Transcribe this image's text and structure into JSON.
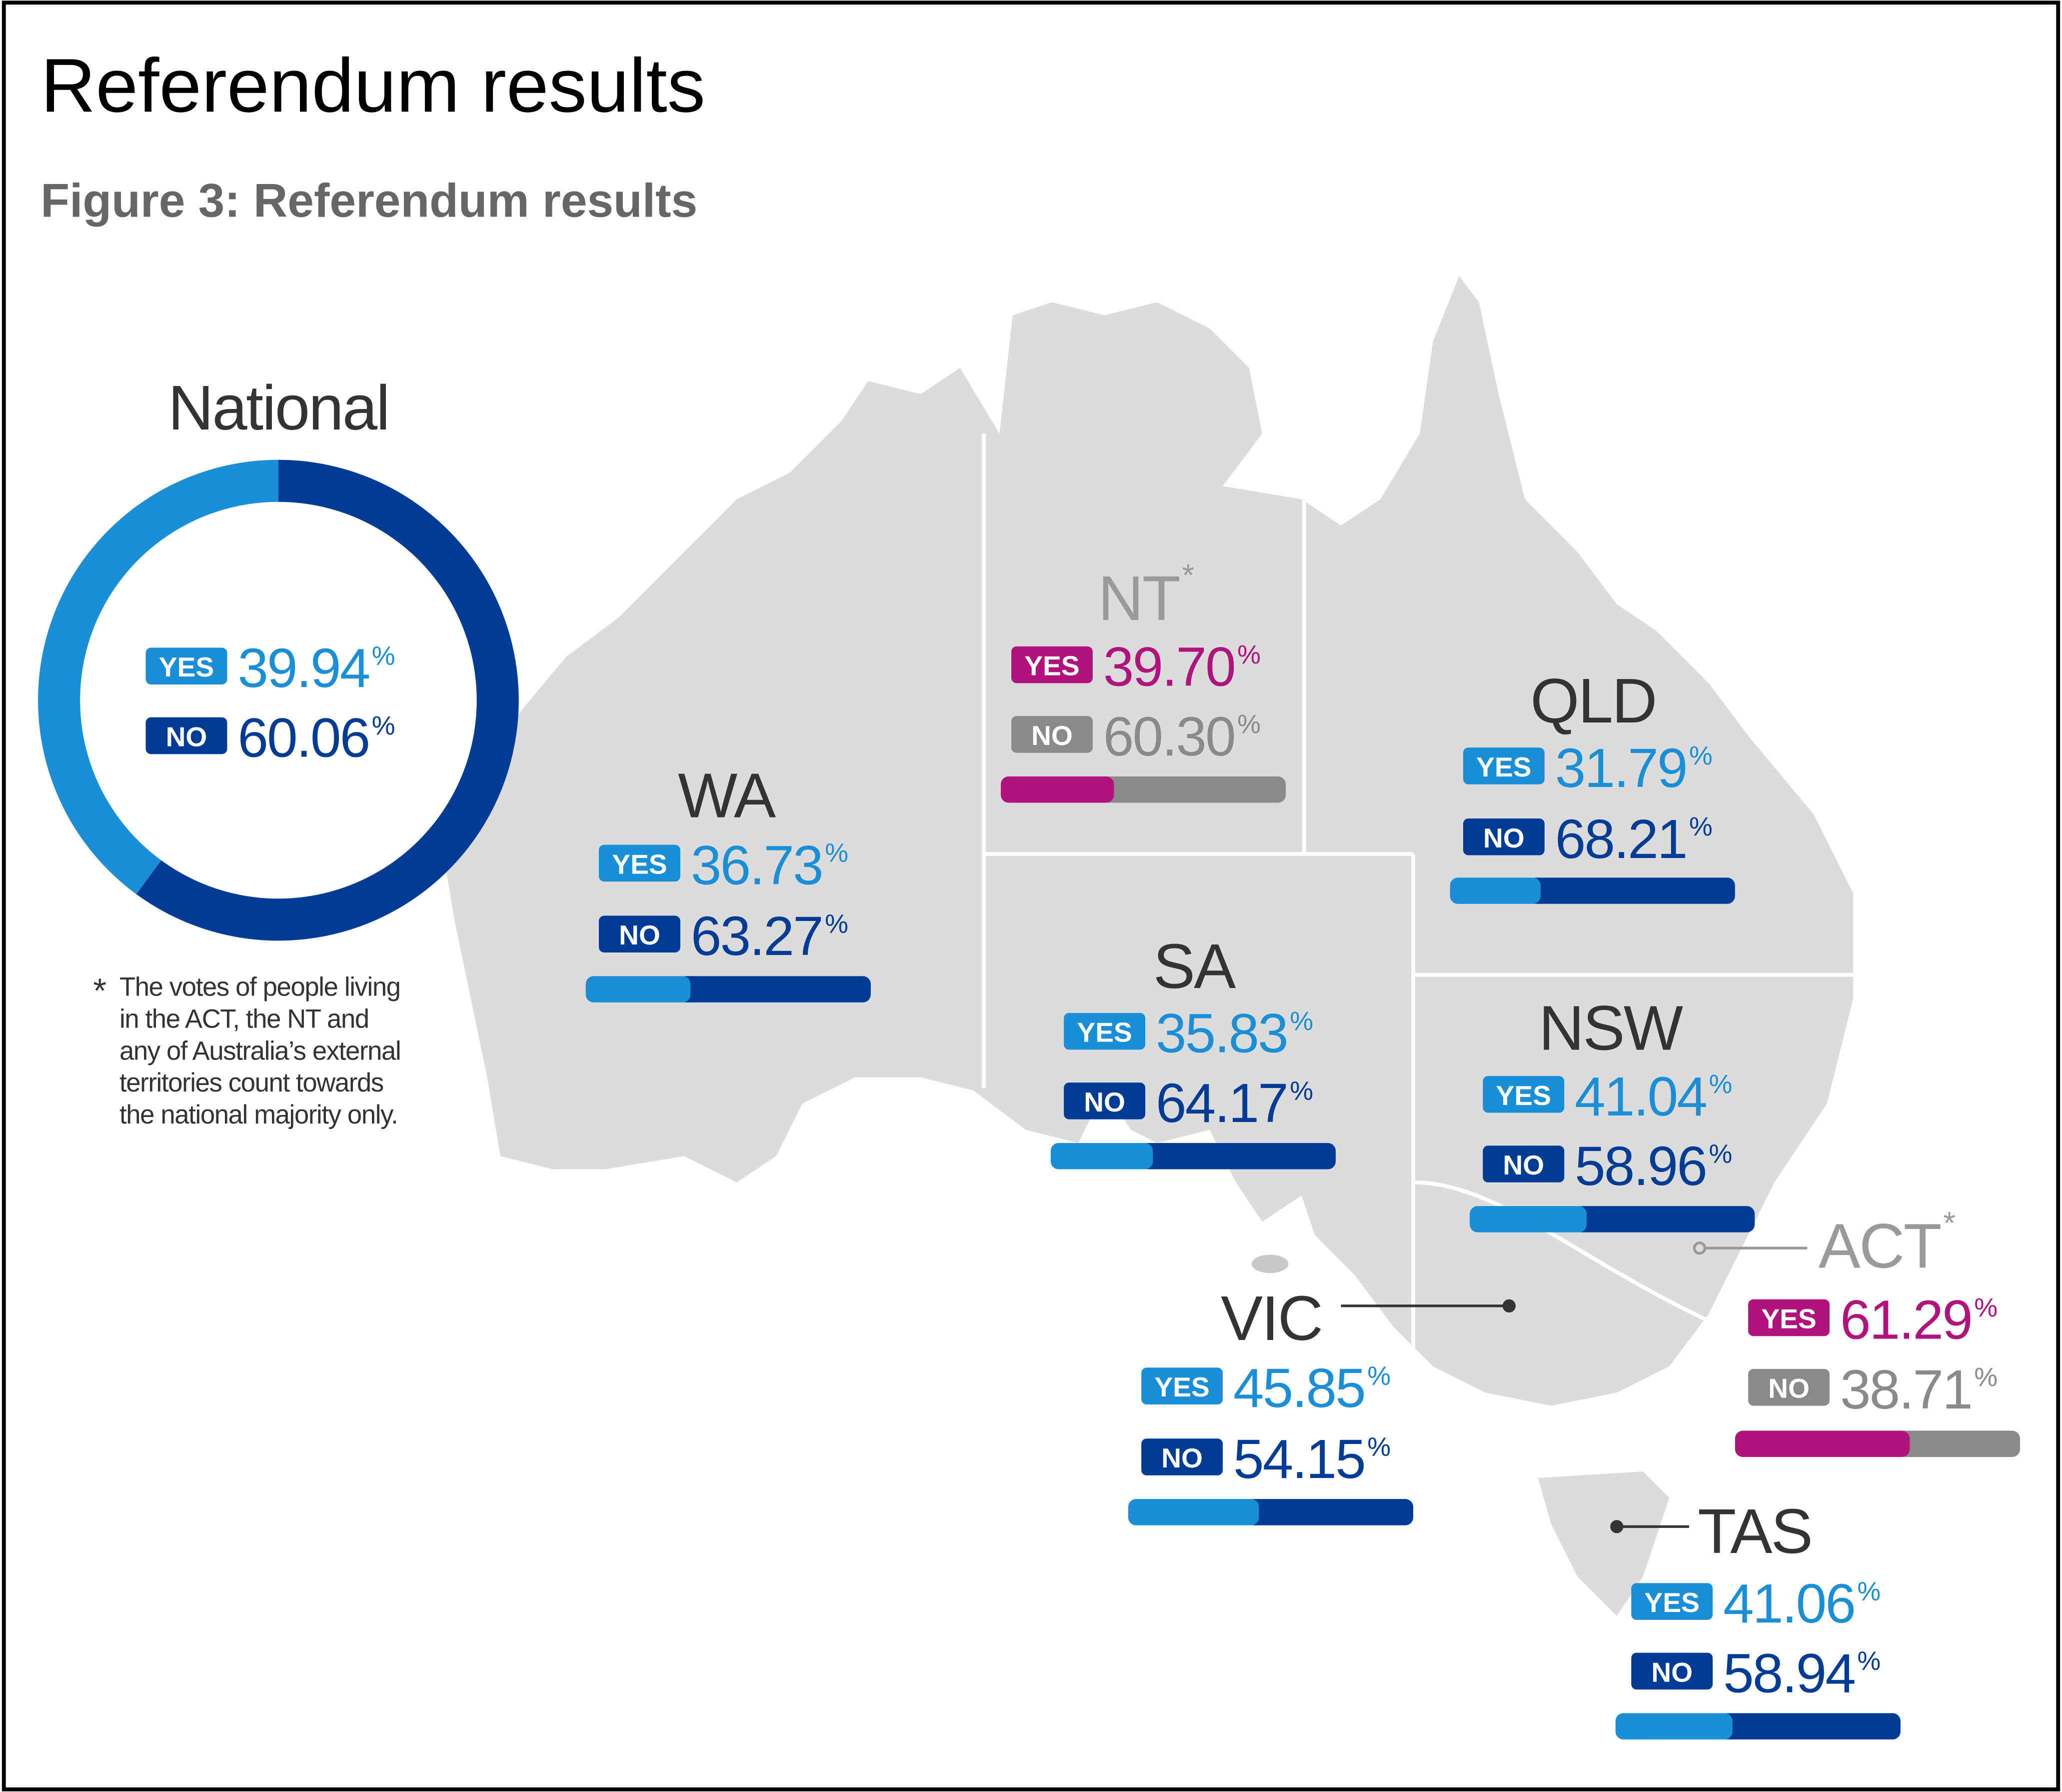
{
  "title": "Referendum results",
  "subtitle": "Figure 3: Referendum results",
  "labels": [
    "YES",
    "NO"
  ],
  "unit": "%",
  "national": {
    "name": "National",
    "values": [
      39.94,
      60.06
    ],
    "colors": [
      "#1a8fd8",
      "#003c96"
    ]
  },
  "footnote": {
    "mark": "*",
    "lines": [
      "The votes of people living",
      "in the ACT, the NT and",
      "any of Australia’s external",
      "territories count towards",
      "the national majority only."
    ]
  },
  "regions": [
    {
      "name": "WA",
      "values": [
        36.73,
        63.27
      ],
      "colors": [
        "#1a8fd8",
        "#003c96"
      ],
      "name_color": "#333333"
    },
    {
      "name": "NT",
      "note": "*",
      "values": [
        39.7,
        60.3
      ],
      "value_labels": [
        "39.70",
        "60.30"
      ],
      "colors": [
        "#b0137c",
        "#8a8a8a"
      ],
      "name_color": "#9a9a9a"
    },
    {
      "name": "QLD",
      "values": [
        31.79,
        68.21
      ],
      "colors": [
        "#1a8fd8",
        "#003c96"
      ],
      "name_color": "#333333"
    },
    {
      "name": "SA",
      "values": [
        35.83,
        64.17
      ],
      "colors": [
        "#1a8fd8",
        "#003c96"
      ],
      "name_color": "#333333"
    },
    {
      "name": "NSW",
      "values": [
        41.04,
        58.96
      ],
      "colors": [
        "#1a8fd8",
        "#003c96"
      ],
      "name_color": "#333333"
    },
    {
      "name": "ACT",
      "note": "*",
      "values": [
        61.29,
        38.71
      ],
      "colors": [
        "#b0137c",
        "#8a8a8a"
      ],
      "name_color": "#9a9a9a"
    },
    {
      "name": "VIC",
      "values": [
        45.85,
        54.15
      ],
      "colors": [
        "#1a8fd8",
        "#003c96"
      ],
      "name_color": "#333333"
    },
    {
      "name": "TAS",
      "values": [
        41.06,
        58.94
      ],
      "colors": [
        "#1a8fd8",
        "#003c96"
      ],
      "name_color": "#333333"
    }
  ]
}
